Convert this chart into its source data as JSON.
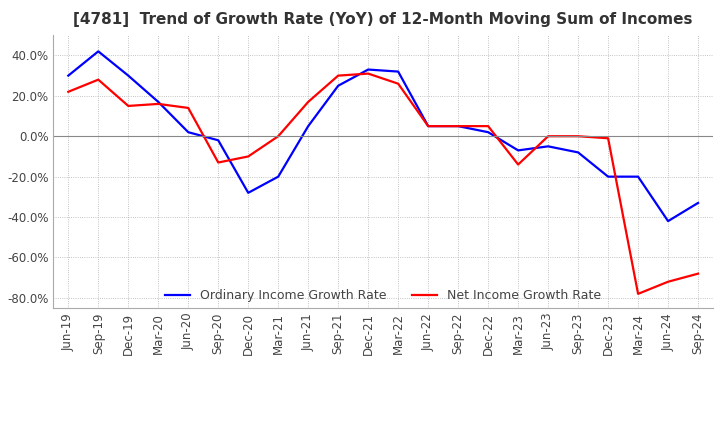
{
  "title": "[4781]  Trend of Growth Rate (YoY) of 12-Month Moving Sum of Incomes",
  "legend_labels": [
    "Ordinary Income Growth Rate",
    "Net Income Growth Rate"
  ],
  "line_colors": [
    "#0000FF",
    "#FF0000"
  ],
  "ylim": [
    -0.85,
    0.5
  ],
  "yticks": [
    0.4,
    0.2,
    0.0,
    -0.2,
    -0.4,
    -0.6,
    -0.8
  ],
  "x_labels": [
    "Jun-19",
    "Sep-19",
    "Dec-19",
    "Mar-20",
    "Jun-20",
    "Sep-20",
    "Dec-20",
    "Mar-21",
    "Jun-21",
    "Sep-21",
    "Dec-21",
    "Mar-22",
    "Jun-22",
    "Sep-22",
    "Dec-22",
    "Mar-23",
    "Jun-23",
    "Sep-23",
    "Dec-23",
    "Mar-24",
    "Jun-24",
    "Sep-24"
  ],
  "ordinary_income": [
    0.3,
    0.42,
    0.3,
    0.17,
    0.02,
    -0.02,
    -0.28,
    -0.2,
    0.05,
    0.25,
    0.33,
    0.32,
    0.05,
    0.05,
    0.02,
    -0.07,
    -0.05,
    -0.08,
    -0.2,
    -0.2,
    -0.42,
    -0.33
  ],
  "net_income": [
    0.22,
    0.28,
    0.15,
    0.16,
    0.14,
    -0.13,
    -0.1,
    0.0,
    0.17,
    0.3,
    0.31,
    0.26,
    0.05,
    0.05,
    0.05,
    -0.14,
    0.0,
    0.0,
    -0.01,
    -0.78,
    -0.72,
    -0.68
  ],
  "background_color": "#ffffff",
  "grid_color": "#b0b0b0",
  "title_fontsize": 11,
  "tick_fontsize": 8.5
}
